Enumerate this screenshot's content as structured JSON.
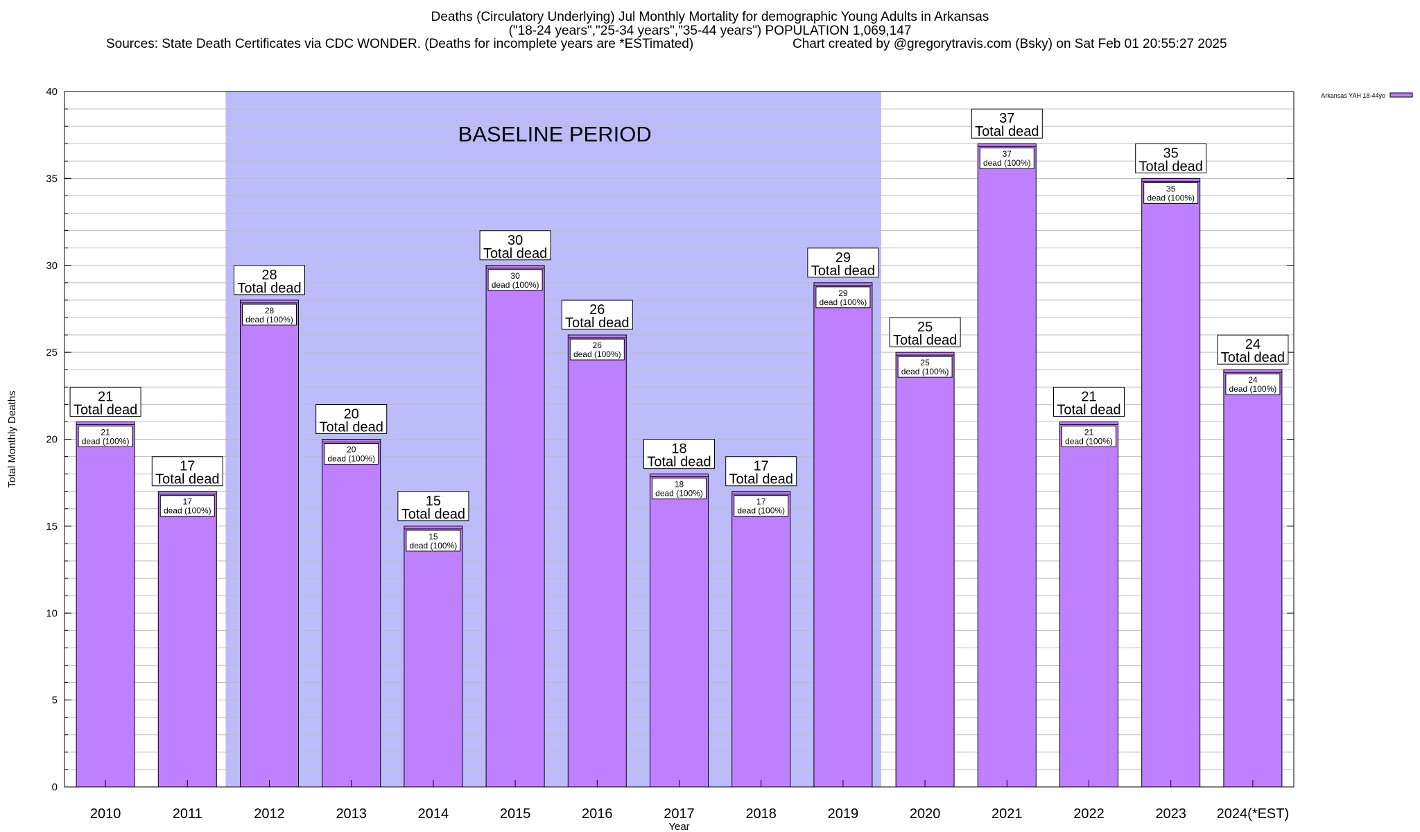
{
  "header": {
    "title": "Deaths (Circulatory Underlying) Jul Monthly Mortality for demographic Young Adults in Arkansas",
    "subtitle": "(\"18-24 years\",\"25-34 years\",\"35-44 years\") POPULATION 1,069,147",
    "sources": "Sources: State Death Certificates via CDC WONDER. (Deaths for incomplete years are *ESTimated)",
    "credit": "Chart created by @gregorytravis.com (Bsky) on Sat Feb 01 20:55:27 2025"
  },
  "chart_data": {
    "type": "bar",
    "categories": [
      "2010",
      "2011",
      "2012",
      "2013",
      "2014",
      "2015",
      "2016",
      "2017",
      "2018",
      "2019",
      "2020",
      "2021",
      "2022",
      "2023",
      "2024(*EST)"
    ],
    "series": [
      {
        "name": "Arkansas YAH 18-44yo",
        "values": [
          21,
          17,
          28,
          20,
          15,
          30,
          26,
          18,
          17,
          29,
          25,
          37,
          21,
          35,
          24
        ]
      }
    ],
    "xlabel": "Year",
    "ylabel": "Total Monthly Deaths",
    "ylim": [
      0,
      40
    ],
    "yticks": [
      0,
      5,
      10,
      15,
      20,
      25,
      30,
      35,
      40
    ],
    "grid": true,
    "legend_position": "top-right",
    "baseline": {
      "label": "BASELINE PERIOD",
      "start": "2012",
      "end": "2019"
    },
    "top_label_suffix": "Total dead",
    "inner_label_suffix": "dead (100%)",
    "colors": {
      "bar": "#bf80ff",
      "bar_stroke": "#000000",
      "baseline_band": "#bcbcfa",
      "grid": "#bbbbbb"
    }
  }
}
